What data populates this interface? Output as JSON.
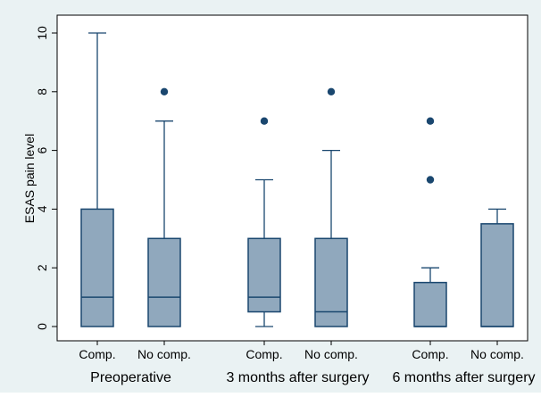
{
  "chart_data": {
    "type": "box",
    "ylabel": "ESAS pain level",
    "xlabel": "",
    "ylim": [
      0,
      10
    ],
    "yticks": [
      0,
      2,
      4,
      6,
      8,
      10
    ],
    "grid": false,
    "groups": [
      {
        "label": "Preoperative",
        "boxes": [
          {
            "label": "Comp.",
            "min": 0,
            "q1": 0,
            "median": 1,
            "q3": 4,
            "max": 10,
            "outliers": []
          },
          {
            "label": "No comp.",
            "min": 0,
            "q1": 0,
            "median": 1,
            "q3": 3,
            "max": 7,
            "outliers": [
              8
            ]
          }
        ]
      },
      {
        "label": "3 months after surgery",
        "boxes": [
          {
            "label": "Comp.",
            "min": 0,
            "q1": 0.5,
            "median": 1,
            "q3": 3,
            "max": 5,
            "outliers": [
              7
            ]
          },
          {
            "label": "No comp.",
            "min": 0,
            "q1": 0,
            "median": 0.5,
            "q3": 3,
            "max": 6,
            "outliers": [
              8
            ]
          }
        ]
      },
      {
        "label": "6 months after surgery",
        "boxes": [
          {
            "label": "Comp.",
            "min": 0,
            "q1": 0,
            "median": 0,
            "q3": 1.5,
            "max": 2,
            "outliers": [
              5,
              7
            ]
          },
          {
            "label": "No comp.",
            "min": 0,
            "q1": 0,
            "median": 0,
            "q3": 3.5,
            "max": 4,
            "outliers": []
          }
        ]
      }
    ],
    "colors": {
      "outer_background": "#eaf2f3",
      "plot_background": "#ffffff",
      "box_fill": "#90a8bd",
      "box_stroke": "#1a476f",
      "outlier": "#1a476f",
      "axis": "#000000"
    }
  }
}
